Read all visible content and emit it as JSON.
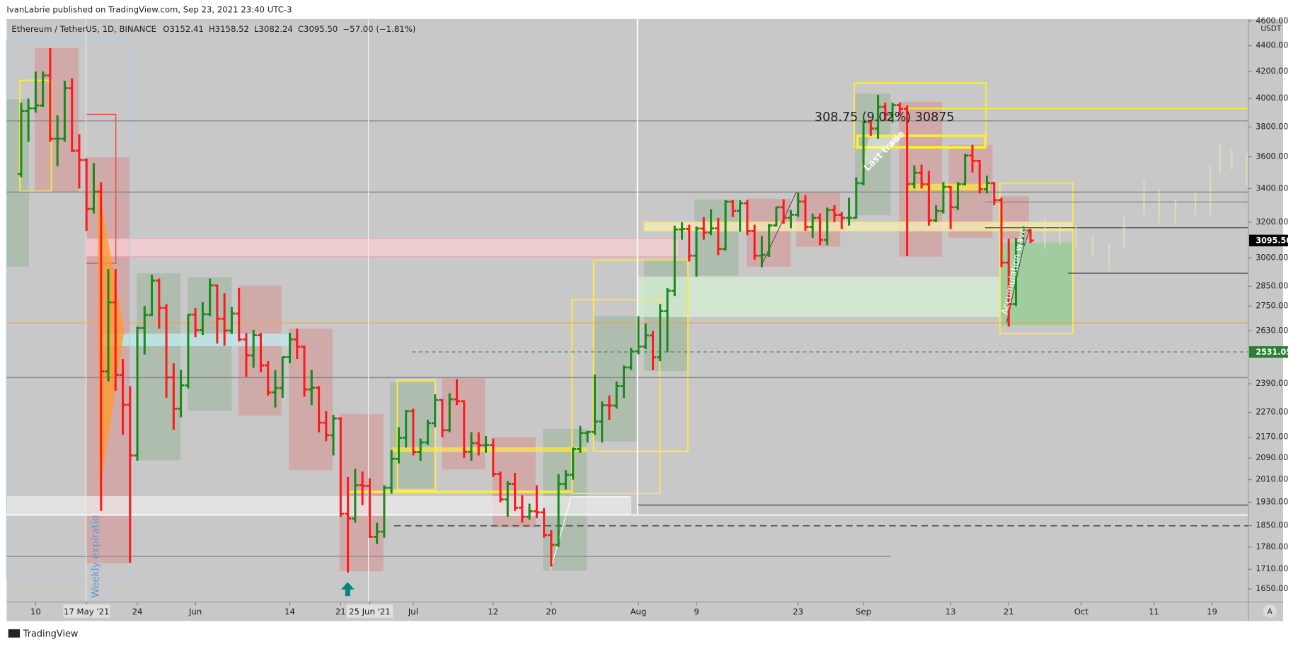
{
  "header": {
    "publisher": "IvanLabrie published on TradingView.com, Sep 23, 2021 23:40 UTC-3",
    "symbol": "Ethereum / TetherUS, 1D, BINANCE",
    "ohlc": [
      "O3152.41",
      "H3158.52",
      "L3082.24",
      "C3095.50"
    ],
    "change": "−57.00 (−1.81%)",
    "unit": "USDT"
  },
  "footer": {
    "brand": "TradingView",
    "scale_button": "A"
  },
  "annotations": {
    "measure": "308.75 (9.02%) 30875",
    "last_trade": "Last trade",
    "weekly": "Weekly expiratio",
    "accumulation": "Accumulation wave"
  },
  "chart_data": {
    "type": "ohlc",
    "log_scale": true,
    "up_color": "#1a8a1a",
    "down_color": "#ff1a1a",
    "xlim": [
      "2021-05-06",
      "2021-10-24"
    ],
    "ylim": [
      1612,
      4617
    ],
    "xticks": [
      {
        "value": "2021-05-10",
        "label": "10"
      },
      {
        "value": "2021-05-17",
        "label": "17 May '21",
        "highlight": true
      },
      {
        "value": "2021-05-24",
        "label": "24"
      },
      {
        "value": "2021-06-01",
        "label": "Jun"
      },
      {
        "value": "2021-06-14",
        "label": "14"
      },
      {
        "value": "2021-06-21",
        "label": "21"
      },
      {
        "value": "2021-06-25",
        "label": "25 Jun '21",
        "highlight": true
      },
      {
        "value": "2021-07-01",
        "label": "Jul"
      },
      {
        "value": "2021-07-12",
        "label": "12"
      },
      {
        "value": "2021-07-20",
        "label": "20"
      },
      {
        "value": "2021-08-01",
        "label": "Aug"
      },
      {
        "value": "2021-08-09",
        "label": "9"
      },
      {
        "value": "2021-08-23",
        "label": "23"
      },
      {
        "value": "2021-09-01",
        "label": "Sep"
      },
      {
        "value": "2021-09-13",
        "label": "13"
      },
      {
        "value": "2021-09-21",
        "label": "21"
      },
      {
        "value": "2021-10-01",
        "label": "Oct"
      },
      {
        "value": "2021-10-11",
        "label": "11"
      },
      {
        "value": "2021-10-19",
        "label": "19"
      }
    ],
    "yticks": [
      {
        "value": 4600,
        "label": "4600.00"
      },
      {
        "value": 4400,
        "label": "4400.00"
      },
      {
        "value": 4200,
        "label": "4200.00"
      },
      {
        "value": 4000,
        "label": "4000.00"
      },
      {
        "value": 3800,
        "label": "3800.00"
      },
      {
        "value": 3600,
        "label": "3600.00"
      },
      {
        "value": 3400,
        "label": "3400.00"
      },
      {
        "value": 3200,
        "label": "3200.00"
      },
      {
        "value": 3000,
        "label": "3000.00"
      },
      {
        "value": 2850,
        "label": "2850.00"
      },
      {
        "value": 2750,
        "label": "2750.00"
      },
      {
        "value": 2630,
        "label": "2630.00"
      },
      {
        "value": 2390,
        "label": "2390.00"
      },
      {
        "value": 2270,
        "label": "2270.00"
      },
      {
        "value": 2170,
        "label": "2170.00"
      },
      {
        "value": 2090,
        "label": "2090.00"
      },
      {
        "value": 2010,
        "label": "2010.00"
      },
      {
        "value": 1930,
        "label": "1930.00"
      },
      {
        "value": 1850,
        "label": "1850.00"
      },
      {
        "value": 1780,
        "label": "1780.00"
      },
      {
        "value": 1710,
        "label": "1710.00"
      },
      {
        "value": 1650,
        "label": "1650.00"
      }
    ],
    "price_markers": [
      {
        "value": 3095.5,
        "label": "3095.50",
        "color": "#000000"
      },
      {
        "value": 2531.05,
        "label": "2531.05",
        "color": "#2e7d32"
      }
    ],
    "x": [
      "2021-05-08",
      "2021-05-09",
      "2021-05-10",
      "2021-05-11",
      "2021-05-12",
      "2021-05-13",
      "2021-05-14",
      "2021-05-15",
      "2021-05-16",
      "2021-05-17",
      "2021-05-18",
      "2021-05-19",
      "2021-05-20",
      "2021-05-21",
      "2021-05-22",
      "2021-05-23",
      "2021-05-24",
      "2021-05-25",
      "2021-05-26",
      "2021-05-27",
      "2021-05-28",
      "2021-05-29",
      "2021-05-30",
      "2021-05-31",
      "2021-06-01",
      "2021-06-02",
      "2021-06-03",
      "2021-06-04",
      "2021-06-05",
      "2021-06-06",
      "2021-06-07",
      "2021-06-08",
      "2021-06-09",
      "2021-06-10",
      "2021-06-11",
      "2021-06-12",
      "2021-06-13",
      "2021-06-14",
      "2021-06-15",
      "2021-06-16",
      "2021-06-17",
      "2021-06-18",
      "2021-06-19",
      "2021-06-20",
      "2021-06-21",
      "2021-06-22",
      "2021-06-23",
      "2021-06-24",
      "2021-06-25",
      "2021-06-26",
      "2021-06-27",
      "2021-06-28",
      "2021-06-29",
      "2021-06-30",
      "2021-07-01",
      "2021-07-02",
      "2021-07-03",
      "2021-07-04",
      "2021-07-05",
      "2021-07-06",
      "2021-07-07",
      "2021-07-08",
      "2021-07-09",
      "2021-07-10",
      "2021-07-11",
      "2021-07-12",
      "2021-07-13",
      "2021-07-14",
      "2021-07-15",
      "2021-07-16",
      "2021-07-17",
      "2021-07-18",
      "2021-07-19",
      "2021-07-20",
      "2021-07-21",
      "2021-07-22",
      "2021-07-23",
      "2021-07-24",
      "2021-07-25",
      "2021-07-26",
      "2021-07-27",
      "2021-07-28",
      "2021-07-29",
      "2021-07-30",
      "2021-07-31",
      "2021-08-01",
      "2021-08-02",
      "2021-08-03",
      "2021-08-04",
      "2021-08-05",
      "2021-08-06",
      "2021-08-07",
      "2021-08-08",
      "2021-08-09",
      "2021-08-10",
      "2021-08-11",
      "2021-08-12",
      "2021-08-13",
      "2021-08-14",
      "2021-08-15",
      "2021-08-16",
      "2021-08-17",
      "2021-08-18",
      "2021-08-19",
      "2021-08-20",
      "2021-08-21",
      "2021-08-22",
      "2021-08-23",
      "2021-08-24",
      "2021-08-25",
      "2021-08-26",
      "2021-08-27",
      "2021-08-28",
      "2021-08-29",
      "2021-08-30",
      "2021-08-31",
      "2021-09-01",
      "2021-09-02",
      "2021-09-03",
      "2021-09-04",
      "2021-09-05",
      "2021-09-06",
      "2021-09-07",
      "2021-09-08",
      "2021-09-09",
      "2021-09-10",
      "2021-09-11",
      "2021-09-12",
      "2021-09-13",
      "2021-09-14",
      "2021-09-15",
      "2021-09-16",
      "2021-09-17",
      "2021-09-18",
      "2021-09-19",
      "2021-09-20",
      "2021-09-21",
      "2021-09-22",
      "2021-09-23",
      "2021-09-24"
    ],
    "open": [
      3490,
      3911,
      3930,
      3950,
      4170,
      3720,
      3720,
      4075,
      3640,
      3580,
      3277,
      3380,
      2444,
      2769,
      2429,
      2301,
      2100,
      2643,
      2706,
      2880,
      2741,
      2418,
      2285,
      2383,
      2708,
      2633,
      2710,
      2855,
      2688,
      2631,
      2713,
      2589,
      2516,
      2609,
      2471,
      2353,
      2372,
      2508,
      2589,
      2555,
      2366,
      2373,
      2228,
      2178,
      2245,
      1890,
      1874,
      1990,
      1988,
      1813,
      1830,
      1981,
      2087,
      2168,
      2275,
      2113,
      2150,
      2226,
      2321,
      2198,
      2324,
      2316,
      2114,
      2147,
      2139,
      2140,
      2031,
      1940,
      1995,
      1911,
      1880,
      1899,
      1895,
      1819,
      1787,
      1995,
      2028,
      2124,
      2187,
      2191,
      2233,
      2299,
      2298,
      2380,
      2462,
      2534,
      2556,
      2608,
      2507,
      2725,
      2827,
      3158,
      3161,
      3012,
      3163,
      3141,
      3164,
      3049,
      3320,
      3266,
      3311,
      3149,
      3012,
      3016,
      3181,
      3287,
      3226,
      3243,
      3321,
      3172,
      3225,
      3099,
      3272,
      3242,
      3225,
      3225,
      3433,
      3834,
      3789,
      3940,
      3886,
      3952,
      3927,
      3428,
      3498,
      3427,
      3210,
      3265,
      3410,
      3287,
      3427,
      3609,
      3574,
      3396,
      3433,
      3330,
      2974,
      2760,
      3080,
      3152.41
    ],
    "high": [
      3970,
      4000,
      4200,
      4200,
      4380,
      3880,
      4130,
      4150,
      3750,
      3590,
      3560,
      3440,
      2940,
      2940,
      2500,
      2380,
      2650,
      2750,
      2910,
      2890,
      2760,
      2480,
      2450,
      2710,
      2740,
      2770,
      2890,
      2860,
      2815,
      2745,
      2840,
      2620,
      2635,
      2620,
      2490,
      2450,
      2510,
      2620,
      2640,
      2560,
      2450,
      2380,
      2275,
      2260,
      2250,
      2020,
      2050,
      2040,
      2015,
      1860,
      1990,
      2120,
      2210,
      2280,
      2285,
      2165,
      2240,
      2345,
      2325,
      2350,
      2410,
      2320,
      2190,
      2190,
      2175,
      2165,
      2040,
      2005,
      2035,
      1955,
      1925,
      1990,
      1910,
      1835,
      2030,
      2045,
      2130,
      2215,
      2195,
      2430,
      2315,
      2340,
      2400,
      2470,
      2550,
      2700,
      2665,
      2630,
      2760,
      2840,
      3180,
      3200,
      3185,
      3175,
      3230,
      3275,
      3225,
      3330,
      3330,
      3330,
      3330,
      3185,
      3120,
      3190,
      3290,
      3335,
      3270,
      3375,
      3360,
      3250,
      3250,
      3285,
      3300,
      3260,
      3345,
      3470,
      3840,
      3840,
      4027,
      3970,
      3970,
      3970,
      3950,
      3545,
      3550,
      3510,
      3300,
      3440,
      3415,
      3440,
      3620,
      3680,
      3580,
      3480,
      3440,
      3345,
      3105,
      3110,
      3175,
      3158.52
    ],
    "low": [
      3470,
      3700,
      3900,
      3940,
      3700,
      3540,
      3700,
      3630,
      3400,
      3150,
      3250,
      1900,
      2400,
      2360,
      2180,
      1730,
      2080,
      2520,
      2700,
      2640,
      2330,
      2200,
      2250,
      2370,
      2600,
      2610,
      2700,
      2570,
      2560,
      2615,
      2580,
      2420,
      2460,
      2440,
      2340,
      2290,
      2330,
      2480,
      2500,
      2335,
      2300,
      2190,
      2155,
      2100,
      1880,
      1700,
      1860,
      1920,
      1810,
      1790,
      1810,
      1960,
      2070,
      2130,
      2100,
      2080,
      2140,
      2210,
      2170,
      2190,
      2300,
      2090,
      2080,
      2100,
      2110,
      2020,
      1930,
      1880,
      1900,
      1860,
      1870,
      1875,
      1810,
      1718,
      1780,
      1975,
      2010,
      2110,
      2150,
      2180,
      2150,
      2240,
      2285,
      2330,
      2450,
      2520,
      2545,
      2450,
      2490,
      2530,
      2800,
      3100,
      2980,
      2900,
      3100,
      3125,
      3015,
      3040,
      3230,
      3145,
      3125,
      2990,
      2950,
      3005,
      3175,
      3190,
      3165,
      3230,
      3150,
      3110,
      3070,
      3070,
      3200,
      3160,
      3180,
      3220,
      3420,
      3740,
      3720,
      3840,
      3830,
      3880,
      3010,
      3400,
      3400,
      3180,
      3200,
      3250,
      3160,
      3270,
      3420,
      3500,
      3370,
      3370,
      3300,
      2950,
      2650,
      2750,
      3070,
      3082.24
    ],
    "close": [
      3911,
      3930,
      3950,
      4170,
      3720,
      3720,
      4075,
      3640,
      3580,
      3277,
      3380,
      2444,
      2769,
      2429,
      2301,
      2100,
      2643,
      2706,
      2880,
      2741,
      2418,
      2285,
      2383,
      2708,
      2633,
      2710,
      2855,
      2688,
      2631,
      2713,
      2589,
      2516,
      2609,
      2471,
      2353,
      2372,
      2508,
      2589,
      2555,
      2366,
      2373,
      2228,
      2178,
      2245,
      1890,
      1874,
      1990,
      1988,
      1813,
      1830,
      1981,
      2087,
      2168,
      2275,
      2113,
      2150,
      2226,
      2321,
      2198,
      2324,
      2316,
      2114,
      2147,
      2139,
      2140,
      2031,
      1940,
      1995,
      1911,
      1880,
      1899,
      1895,
      1819,
      1787,
      1995,
      2028,
      2124,
      2187,
      2191,
      2233,
      2299,
      2298,
      2380,
      2462,
      2534,
      2556,
      2608,
      2507,
      2725,
      2827,
      3158,
      3161,
      3012,
      3163,
      3141,
      3164,
      3049,
      3320,
      3266,
      3311,
      3149,
      3012,
      3016,
      3181,
      3287,
      3226,
      3243,
      3321,
      3172,
      3225,
      3099,
      3272,
      3242,
      3225,
      3225,
      3433,
      3834,
      3789,
      3940,
      3886,
      3952,
      3927,
      3428,
      3498,
      3427,
      3210,
      3265,
      3410,
      3287,
      3427,
      3609,
      3574,
      3396,
      3433,
      3330,
      2974,
      2760,
      3080,
      3152.41,
      3095.5
    ]
  }
}
